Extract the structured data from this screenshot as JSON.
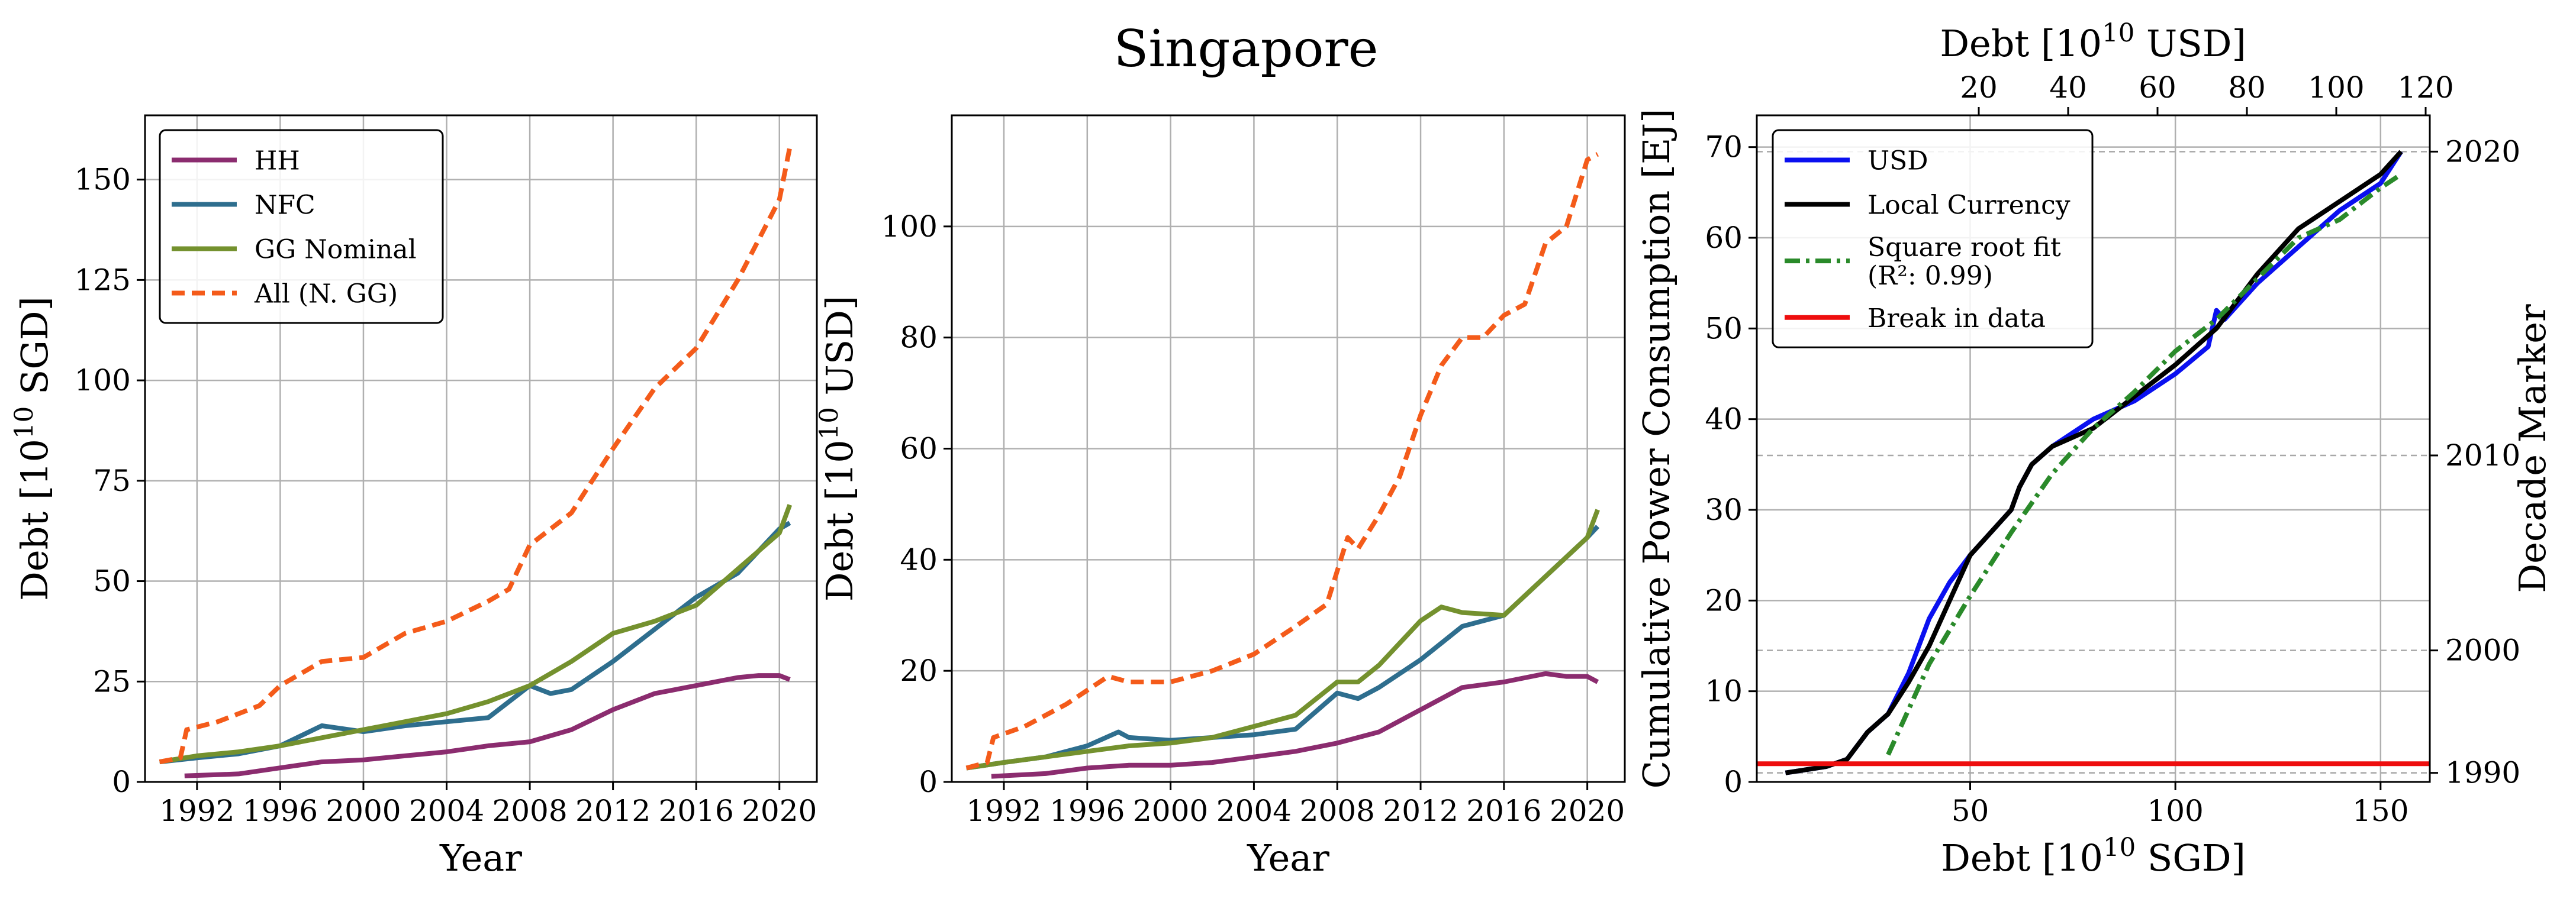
{
  "title": "Singapore",
  "chart_data": [
    {
      "type": "line",
      "xlabel": "Year",
      "ylabel": "Debt [10^10 SGD]",
      "xlim": [
        1989.5,
        2021.8
      ],
      "ylim": [
        0,
        166
      ],
      "xticks": [
        1992,
        1996,
        2000,
        2004,
        2008,
        2012,
        2016,
        2020
      ],
      "yticks": [
        0,
        25,
        50,
        75,
        100,
        125,
        150
      ],
      "legend_position": "top-left",
      "series": [
        {
          "name": "HH",
          "color": "#8B2C6F",
          "dash": "solid",
          "x": [
            1991.4,
            1994,
            1996,
            1998,
            2000,
            2002,
            2004,
            2006,
            2008,
            2010,
            2012,
            2014,
            2016,
            2018,
            2019,
            2020,
            2020.5
          ],
          "y": [
            1.5,
            2,
            3.5,
            5,
            5.5,
            6.5,
            7.5,
            9,
            10,
            13,
            18,
            22,
            24,
            26,
            26.5,
            26.5,
            25.5
          ]
        },
        {
          "name": "NFC",
          "color": "#2E6E8E",
          "dash": "solid",
          "x": [
            1990.2,
            1992,
            1994,
            1996,
            1998,
            2000,
            2002,
            2004,
            2006,
            2008,
            2009,
            2010,
            2012,
            2014,
            2016,
            2018,
            2020,
            2020.5
          ],
          "y": [
            5,
            6,
            7,
            9,
            14,
            12.5,
            14,
            15,
            16,
            24,
            22,
            23,
            30,
            38,
            46,
            52,
            63,
            64.5
          ]
        },
        {
          "name": "GG Nominal",
          "color": "#74912E",
          "dash": "solid",
          "x": [
            1990.2,
            1992,
            1994,
            1996,
            1998,
            2000,
            2002,
            2004,
            2006,
            2008,
            2010,
            2012,
            2014,
            2016,
            2018,
            2020,
            2020.5
          ],
          "y": [
            5,
            6.5,
            7.5,
            9,
            11,
            13,
            15,
            17,
            20,
            24,
            30,
            37,
            40,
            44,
            53,
            62,
            69
          ]
        },
        {
          "name": "All (N. GG)",
          "color": "#F45B1A",
          "dash": "dashed",
          "x": [
            1990.2,
            1991.2,
            1991.5,
            1993,
            1995,
            1996,
            1998,
            2000,
            2002,
            2004,
            2006,
            2007,
            2008,
            2010,
            2012,
            2014,
            2016,
            2018,
            2020,
            2020.5
          ],
          "y": [
            5,
            6,
            13,
            15,
            19,
            24,
            30,
            31,
            37,
            40,
            45,
            48,
            59,
            67,
            83,
            98,
            108,
            125,
            145,
            158
          ]
        }
      ]
    },
    {
      "type": "line",
      "xlabel": "Year",
      "ylabel": "Debt [10^10 USD]",
      "xlim": [
        1989.5,
        2021.8
      ],
      "ylim": [
        0,
        120
      ],
      "xticks": [
        1992,
        1996,
        2000,
        2004,
        2008,
        2012,
        2016,
        2020
      ],
      "yticks": [
        0,
        20,
        40,
        60,
        80,
        100
      ],
      "series": [
        {
          "name": "HH",
          "color": "#8B2C6F",
          "dash": "solid",
          "x": [
            1991.4,
            1994,
            1996,
            1998,
            2000,
            2002,
            2004,
            2006,
            2008,
            2009,
            2010,
            2012,
            2014,
            2016,
            2018,
            2019,
            2020,
            2020.5
          ],
          "y": [
            1,
            1.5,
            2.5,
            3,
            3,
            3.5,
            4.5,
            5.5,
            7,
            8,
            9,
            13,
            17,
            18,
            19.5,
            19,
            19,
            18
          ]
        },
        {
          "name": "NFC",
          "color": "#2E6E8E",
          "dash": "solid",
          "x": [
            1990.2,
            1992,
            1994,
            1996,
            1997.5,
            1998,
            2000,
            2002,
            2004,
            2006,
            2008,
            2009,
            2010,
            2012,
            2014,
            2016,
            2018,
            2020,
            2020.5
          ],
          "y": [
            2.5,
            3.5,
            4.5,
            6.5,
            9,
            8,
            7.5,
            8,
            8.5,
            9.5,
            16,
            15,
            17,
            22,
            28,
            30,
            37,
            44,
            46
          ]
        },
        {
          "name": "GG Nominal",
          "color": "#74912E",
          "dash": "solid",
          "x": [
            1990.2,
            1992,
            1994,
            1996,
            1998,
            2000,
            2002,
            2004,
            2006,
            2008,
            2009,
            2010,
            2012,
            2013,
            2014,
            2016,
            2018,
            2020,
            2020.5
          ],
          "y": [
            2.5,
            3.5,
            4.5,
            5.5,
            6.5,
            7,
            8,
            10,
            12,
            18,
            18,
            21,
            29,
            31.5,
            30.5,
            30,
            37,
            44,
            49
          ]
        },
        {
          "name": "All (N. GG)",
          "color": "#F45B1A",
          "dash": "dashed",
          "x": [
            1990.2,
            1991.2,
            1991.5,
            1993,
            1995,
            1997,
            1998,
            2000,
            2002,
            2004,
            2006,
            2007.5,
            2008.5,
            2009,
            2010,
            2011,
            2012,
            2013,
            2014,
            2015,
            2016,
            2017,
            2018,
            2019,
            2020,
            2020.5
          ],
          "y": [
            2.5,
            3.5,
            8,
            10,
            14,
            19,
            18,
            18,
            20,
            23,
            28,
            32,
            44,
            42,
            48,
            55,
            66,
            75,
            80,
            80,
            84,
            86,
            97,
            100,
            112,
            113
          ]
        }
      ]
    },
    {
      "type": "line",
      "xlabel": "Debt [10^10 SGD]",
      "ylabel": "Cumulative Power Consumption [EJ]",
      "top_xlabel": "Debt [10^10 USD]",
      "right_ylabel": "Decade Marker",
      "xlim": [
        -2,
        162
      ],
      "ylim": [
        0,
        73.5
      ],
      "xticks": [
        50,
        100,
        150
      ],
      "yticks": [
        0,
        10,
        20,
        30,
        40,
        50,
        60,
        70
      ],
      "top_xticks": [
        20,
        40,
        60,
        80,
        100,
        120
      ],
      "right_ytick_years": [
        1990,
        2000,
        2010,
        2020
      ],
      "right_ytick_levels": [
        1,
        14.5,
        36,
        69.5
      ],
      "legend_position": "top-left",
      "series": [
        {
          "name": "USD",
          "color": "#0A10F0",
          "dash": "solid",
          "x": [
            5,
            15,
            20,
            25,
            30,
            35,
            40,
            45,
            50,
            55,
            60,
            62,
            65,
            70,
            80,
            90,
            100,
            108,
            110,
            112,
            120,
            130,
            140,
            150,
            155
          ],
          "y": [
            1,
            1.7,
            2.5,
            5.5,
            7.5,
            12,
            18,
            22,
            25,
            27.5,
            30,
            32.5,
            35,
            37,
            40,
            42,
            45,
            48,
            52,
            51,
            55,
            59,
            63,
            66,
            69.5
          ]
        },
        {
          "name": "Local Currency",
          "color": "#000000",
          "dash": "solid",
          "x": [
            5,
            15,
            20,
            25,
            30,
            35,
            40,
            45,
            50,
            55,
            60,
            62,
            65,
            70,
            80,
            90,
            100,
            110,
            120,
            130,
            140,
            150,
            155
          ],
          "y": [
            1,
            1.7,
            2.5,
            5.5,
            7.5,
            11,
            15,
            20,
            25,
            27.5,
            30,
            32.5,
            35,
            37,
            39,
            42.5,
            46,
            50,
            56,
            61,
            64,
            67,
            69.5
          ]
        },
        {
          "name": "Square root fit",
          "name2": "(R²: 0.99)",
          "color": "#2A8A2A",
          "dash": "dashdot",
          "x": [
            30,
            40,
            50,
            60,
            70,
            80,
            90,
            100,
            110,
            120,
            130,
            140,
            150,
            155
          ],
          "y": [
            3,
            13,
            20.5,
            27.5,
            34,
            39,
            43,
            47.5,
            51,
            55.5,
            60,
            62,
            65.5,
            67
          ]
        },
        {
          "name": "Break in data",
          "color": "#EE0E0E",
          "dash": "solid",
          "x": [
            -2,
            162
          ],
          "y": [
            2,
            2
          ]
        }
      ]
    }
  ]
}
